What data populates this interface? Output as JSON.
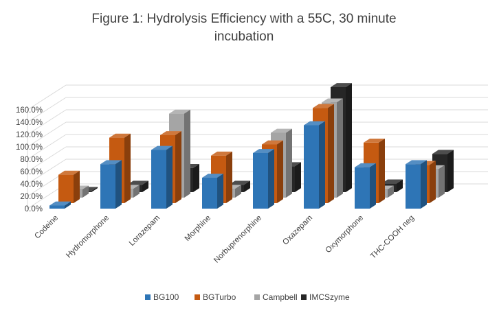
{
  "chart_data": {
    "type": "bar",
    "title": "Figure 1: Hydrolysis Efficiency with a 55C, 30 minute",
    "title_line2": "incubation",
    "categories": [
      "Codeine",
      "Hydromorphone",
      "Lorazepam",
      "Morphine",
      "Norbuprenorphine",
      "Oxazepam",
      "Oxymorphone",
      "THC-COOH neg"
    ],
    "y_tick_labels": [
      "0.0%",
      "20.0%",
      "40.0%",
      "60.0%",
      "80.0%",
      "100.0%",
      "120.0%",
      "140.0%",
      "160.0%"
    ],
    "ylim": [
      0,
      160
    ],
    "legend_position": "bottom",
    "grid": true,
    "series": [
      {
        "name": "BG100",
        "color": "#2e75b6",
        "values": [
          5,
          72,
          95,
          50,
          90,
          135,
          67,
          72
        ]
      },
      {
        "name": "BGTurbo",
        "color": "#c55a11",
        "values": [
          46,
          106,
          110,
          77,
          95,
          154,
          98,
          62
        ]
      },
      {
        "name": "Campbell",
        "color": "#a5a5a5",
        "values": [
          13,
          14,
          136,
          14,
          105,
          154,
          13,
          46
        ]
      },
      {
        "name": "IMCSzyme",
        "color": "#262626",
        "values": [
          2,
          12,
          39,
          12,
          42,
          170,
          14,
          62
        ]
      }
    ]
  }
}
